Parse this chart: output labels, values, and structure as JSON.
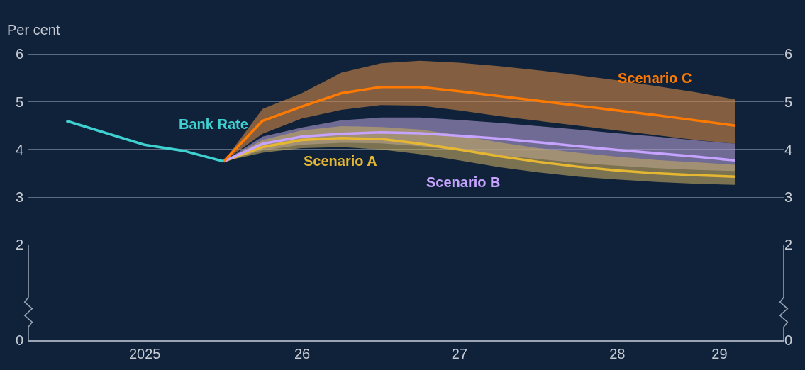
{
  "chart_data": {
    "type": "line",
    "ylabel": "Per cent",
    "xlim": [
      "2024-10-05",
      "2029-07-23"
    ],
    "xticks": [
      {
        "value": "2025-07-02",
        "label": "2025"
      },
      {
        "value": "2026-07-02",
        "label": "26"
      },
      {
        "value": "2027-07-02",
        "label": "27"
      },
      {
        "value": "2028-07-02",
        "label": "28"
      },
      {
        "value": "2029-02-24",
        "label": "29"
      }
    ],
    "ylim": [
      0,
      6.02
    ],
    "yticks": [
      0,
      2,
      3,
      4,
      5,
      6
    ],
    "y2lim": [
      0,
      6.02
    ],
    "y2ticks": [
      0,
      2,
      3,
      4,
      5,
      6
    ],
    "grid": "y",
    "legend": false,
    "series": [
      {
        "name": "Bank Rate",
        "color": "#3fd0d0",
        "x": [
          "2025-01",
          "2025-07",
          "2025-10",
          "2026-01"
        ],
        "values": [
          4.6,
          4.1,
          3.97,
          3.75
        ]
      },
      {
        "name": "Scenario A",
        "color": "#e5b732",
        "x": [
          "2026-01",
          "2026-04",
          "2026-07",
          "2026-10",
          "2027-01",
          "2027-04",
          "2027-07",
          "2027-10",
          "2028-01",
          "2028-04",
          "2028-07",
          "2028-10",
          "2029-01",
          "2029-04"
        ],
        "values": [
          3.75,
          4.05,
          4.2,
          4.24,
          4.22,
          4.12,
          4.0,
          3.86,
          3.74,
          3.64,
          3.56,
          3.5,
          3.46,
          3.43
        ],
        "lower": [
          3.75,
          3.93,
          4.03,
          4.05,
          4.0,
          3.9,
          3.77,
          3.63,
          3.52,
          3.43,
          3.37,
          3.32,
          3.28,
          3.26
        ],
        "upper": [
          3.75,
          4.2,
          4.4,
          4.49,
          4.47,
          4.42,
          4.3,
          4.15,
          4.03,
          3.93,
          3.85,
          3.78,
          3.73,
          3.68
        ]
      },
      {
        "name": "Scenario B",
        "color": "#c5a3ff",
        "x": [
          "2026-01",
          "2026-04",
          "2026-07",
          "2026-10",
          "2027-01",
          "2027-04",
          "2027-07",
          "2027-10",
          "2028-01",
          "2028-04",
          "2028-07",
          "2028-10",
          "2029-01",
          "2029-04"
        ],
        "values": [
          3.75,
          4.12,
          4.27,
          4.33,
          4.36,
          4.34,
          4.29,
          4.23,
          4.15,
          4.07,
          3.99,
          3.92,
          3.85,
          3.77
        ],
        "lower": [
          3.75,
          3.98,
          4.1,
          4.14,
          4.13,
          4.07,
          3.98,
          3.88,
          3.8,
          3.72,
          3.66,
          3.61,
          3.57,
          3.55
        ],
        "upper": [
          3.75,
          4.27,
          4.46,
          4.61,
          4.67,
          4.67,
          4.62,
          4.56,
          4.49,
          4.42,
          4.34,
          4.27,
          4.19,
          4.12
        ]
      },
      {
        "name": "Scenario C",
        "color": "#ff7a00",
        "x": [
          "2026-01",
          "2026-04",
          "2026-07",
          "2026-10",
          "2027-01",
          "2027-04",
          "2027-07",
          "2027-10",
          "2028-01",
          "2028-04",
          "2028-07",
          "2028-10",
          "2029-01",
          "2029-04"
        ],
        "values": [
          3.75,
          4.6,
          4.9,
          5.18,
          5.31,
          5.31,
          5.22,
          5.12,
          5.02,
          4.92,
          4.82,
          4.72,
          4.61,
          4.5
        ],
        "lower": [
          3.75,
          4.33,
          4.65,
          4.83,
          4.93,
          4.92,
          4.82,
          4.7,
          4.6,
          4.5,
          4.4,
          4.3,
          4.2,
          4.12
        ],
        "upper": [
          3.75,
          4.85,
          5.18,
          5.61,
          5.81,
          5.86,
          5.82,
          5.75,
          5.66,
          5.56,
          5.45,
          5.33,
          5.2,
          5.05
        ]
      }
    ]
  }
}
